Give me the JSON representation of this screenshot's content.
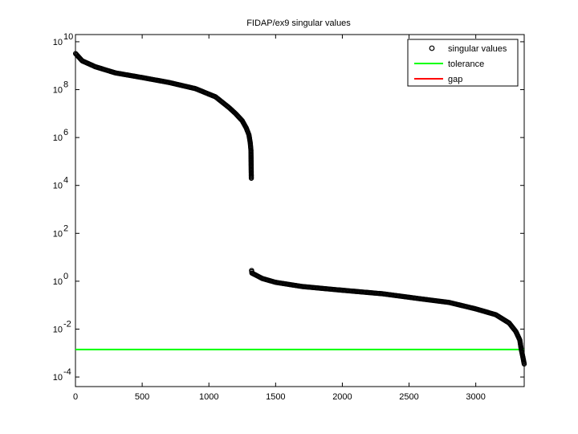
{
  "chart_data": {
    "type": "scatter",
    "title": "FIDAP/ex9 singular values",
    "xlabel": "",
    "ylabel": "",
    "xlim": [
      0,
      3363
    ],
    "ylim_log10": [
      -4.4,
      10.3
    ],
    "x_ticks": [
      0,
      500,
      1000,
      1500,
      2000,
      2500,
      3000
    ],
    "x_tick_labels": [
      "0",
      "500",
      "1000",
      "1500",
      "2000",
      "2500",
      "3000"
    ],
    "y_ticks_log10": [
      -4,
      -2,
      0,
      2,
      4,
      6,
      8,
      10
    ],
    "y_tick_bases": [
      "10",
      "10",
      "10",
      "10",
      "10",
      "10",
      "10",
      "10"
    ],
    "y_tick_exponents": [
      "-4",
      "-2",
      "0",
      "2",
      "4",
      "6",
      "8",
      "10"
    ],
    "y_scale": "log",
    "grid": false,
    "legend_position": "top-right",
    "series": [
      {
        "name": "singular values",
        "style": "markers",
        "marker": "circle",
        "color": "#000000",
        "x": [
          1,
          50,
          150,
          300,
          500,
          700,
          900,
          1050,
          1150,
          1200,
          1250,
          1280,
          1300,
          1310,
          1315,
          1318,
          1320,
          1321,
          1322,
          1400,
          1500,
          1700,
          2000,
          2300,
          2600,
          2800,
          3000,
          3150,
          3250,
          3300,
          3330,
          3340,
          3355,
          3363
        ],
        "y": [
          3200000000.0,
          1600000000.0,
          900000000.0,
          500000000.0,
          320000000.0,
          200000000.0,
          110000000.0,
          50000000.0,
          18000000.0,
          10000000.0,
          5000000.0,
          2500000.0,
          1300000.0,
          600000.0,
          300000.0,
          20000.0,
          2.8,
          2.5,
          2.2,
          1.3,
          0.9,
          0.6,
          0.42,
          0.3,
          0.18,
          0.13,
          0.07,
          0.04,
          0.018,
          0.008,
          0.0035,
          0.0015,
          0.0006,
          0.00035
        ]
      },
      {
        "name": "tolerance",
        "style": "line",
        "color": "#00ff00",
        "x": [
          0,
          3363
        ],
        "y": [
          0.0014,
          0.0014
        ]
      },
      {
        "name": "gap",
        "style": "line",
        "color": "#ff0000",
        "x": [],
        "y": []
      }
    ]
  }
}
